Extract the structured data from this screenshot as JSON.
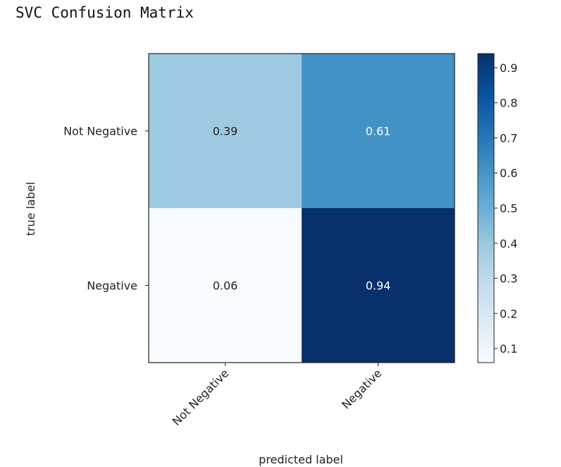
{
  "page": {
    "title": "SVC Confusion Matrix"
  },
  "chart_data": {
    "type": "heatmap",
    "title": "SVC Confusion Matrix",
    "xlabel": "predicted label",
    "ylabel": "true label",
    "x_categories": [
      "Not Negative",
      "Negative"
    ],
    "y_categories": [
      "Not Negative",
      "Negative"
    ],
    "values": [
      [
        0.39,
        0.61
      ],
      [
        0.06,
        0.94
      ]
    ],
    "value_labels": [
      [
        "0.39",
        "0.61"
      ],
      [
        "0.06",
        "0.94"
      ]
    ],
    "colormap": "Blues",
    "colorbar": {
      "min": 0.06,
      "max": 0.94,
      "ticks": [
        0.1,
        0.2,
        0.3,
        0.4,
        0.5,
        0.6,
        0.7,
        0.8,
        0.9
      ],
      "tick_labels": [
        "0.1",
        "0.2",
        "0.3",
        "0.4",
        "0.5",
        "0.6",
        "0.7",
        "0.8",
        "0.9"
      ]
    },
    "text_colors": {
      "dark": "#222222",
      "light": "#ffffff"
    },
    "grid": false
  }
}
